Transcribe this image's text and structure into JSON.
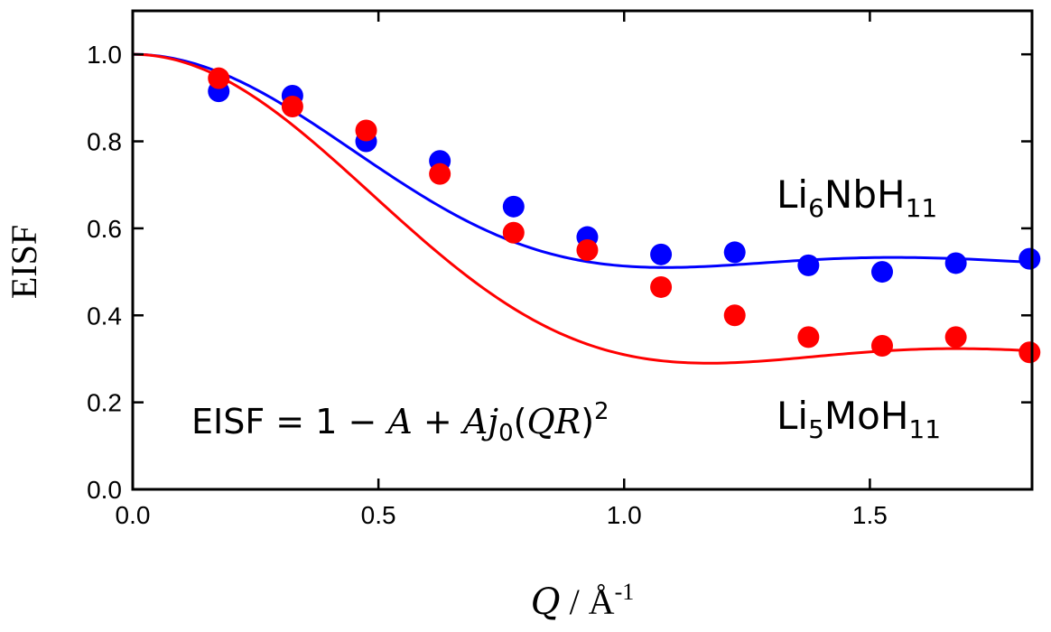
{
  "chart_data": {
    "type": "scatter",
    "xlabel": "Q / Å-1",
    "xlabel_parts": {
      "symbol": "Q",
      "unit": " / Å",
      "exponent": "-1"
    },
    "ylabel": "EISF",
    "xlim": [
      0,
      1.83
    ],
    "ylim": [
      0,
      1.1
    ],
    "x_ticks": [
      0.0,
      0.5,
      1.0,
      1.5
    ],
    "x_tick_labels": [
      "0.0",
      "0.5",
      "1.0",
      "1.5"
    ],
    "y_ticks": [
      0.0,
      0.2,
      0.4,
      0.6,
      0.8,
      1.0
    ],
    "y_tick_labels": [
      "0.0",
      "0.2",
      "0.4",
      "0.6",
      "0.8",
      "1.0"
    ],
    "grid": false,
    "series": [
      {
        "label_parts": {
          "el1": "Li",
          "n1": "6",
          "el2": "NbH",
          "n2": "11"
        },
        "color": "#0000ff",
        "x": [
          0.175,
          0.325,
          0.475,
          0.625,
          0.775,
          0.925,
          1.075,
          1.225,
          1.375,
          1.525,
          1.675,
          1.825
        ],
        "y": [
          0.915,
          0.905,
          0.8,
          0.755,
          0.65,
          0.58,
          0.54,
          0.545,
          0.515,
          0.5,
          0.52,
          0.53
        ],
        "fit": {
          "A": 0.49,
          "R": 2.9
        }
      },
      {
        "label_parts": {
          "el1": "Li",
          "n1": "5",
          "el2": "MoH",
          "n2": "11"
        },
        "color": "#ff0000",
        "x": [
          0.175,
          0.325,
          0.475,
          0.625,
          0.775,
          0.925,
          1.075,
          1.225,
          1.375,
          1.525,
          1.675,
          1.825
        ],
        "y": [
          0.945,
          0.88,
          0.825,
          0.725,
          0.59,
          0.55,
          0.465,
          0.4,
          0.35,
          0.33,
          0.35,
          0.315
        ],
        "fit": {
          "A": 0.71,
          "R": 2.68
        }
      }
    ],
    "equation": {
      "left": "EISF = 1 − ",
      "A1": "A",
      "plus": " + ",
      "A2": "A",
      "j": "j",
      "sub": "0",
      "open": "(",
      "QR": "QR",
      "close": ")",
      "sup": "2"
    }
  }
}
